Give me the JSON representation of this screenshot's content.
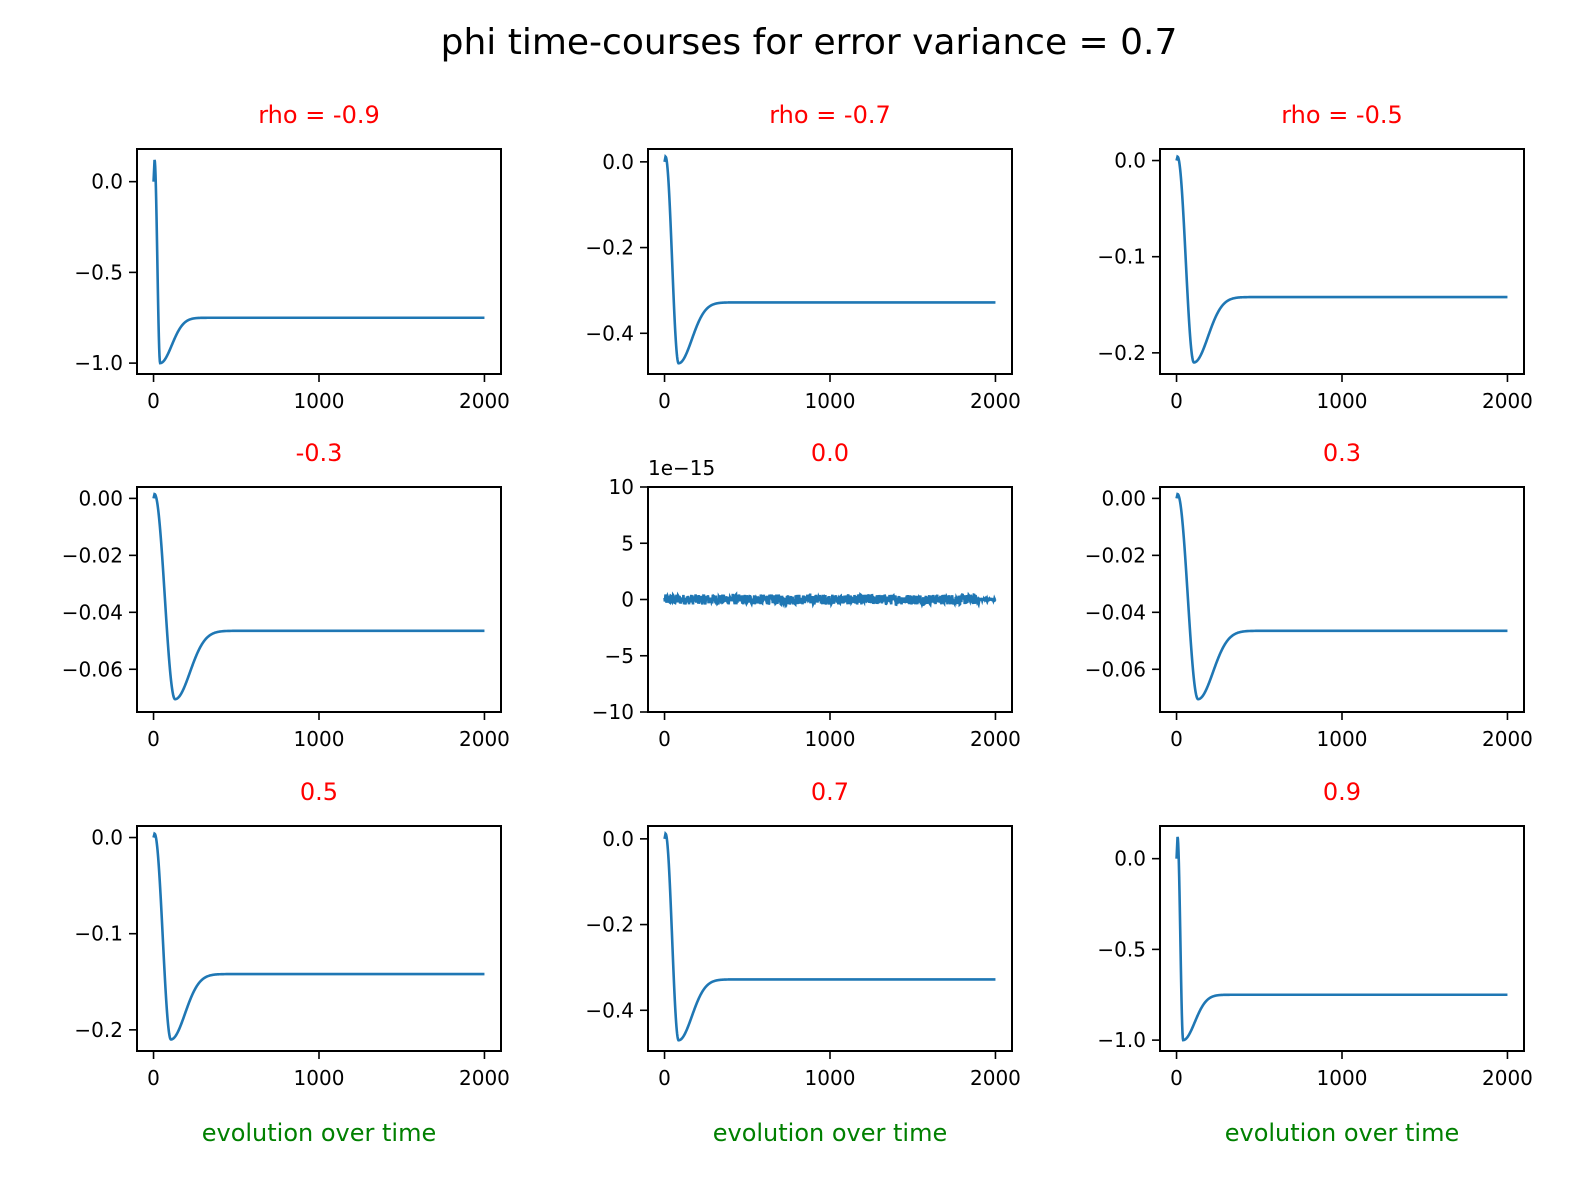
{
  "figure": {
    "title": "phi time-courses for error variance = 0.7"
  },
  "colors": {
    "line": "#1f77b4",
    "subplot_title": "#ff0000",
    "xlabel": "#008000"
  },
  "chart_data": [
    {
      "type": "line",
      "title": "rho = -0.9",
      "xlabel": "",
      "ylabel": "",
      "xlim": [
        -100,
        2100
      ],
      "ylim": [
        -1.06,
        0.18
      ],
      "xticks": [
        0,
        1000,
        2000
      ],
      "xtick_labels": [
        "0",
        "1000",
        "2000"
      ],
      "yticks": [
        0.0,
        -0.5,
        -1.0
      ],
      "ytick_labels": [
        "0.0",
        "−0.5",
        "−1.0"
      ],
      "curve": {
        "x_start": 0,
        "x_end": 2000,
        "start_value": 0.0,
        "initial_spike": 0.12,
        "min_x": 40,
        "min_value": -1.0,
        "plateau": -0.75,
        "recovery_tau": 70
      }
    },
    {
      "type": "line",
      "title": "rho = -0.7",
      "xlabel": "",
      "ylabel": "",
      "xlim": [
        -100,
        2100
      ],
      "ylim": [
        -0.495,
        0.03
      ],
      "xticks": [
        0,
        1000,
        2000
      ],
      "xtick_labels": [
        "0",
        "1000",
        "2000"
      ],
      "yticks": [
        0.0,
        -0.2,
        -0.4
      ],
      "ytick_labels": [
        "0.0",
        "−0.2",
        "−0.4"
      ],
      "curve": {
        "x_start": 0,
        "x_end": 2000,
        "start_value": 0.0,
        "initial_spike": 0.012,
        "min_x": 85,
        "min_value": -0.47,
        "plateau": -0.328,
        "recovery_tau": 80
      }
    },
    {
      "type": "line",
      "title": "rho = -0.5",
      "xlabel": "",
      "ylabel": "",
      "xlim": [
        -100,
        2100
      ],
      "ylim": [
        -0.222,
        0.012
      ],
      "xticks": [
        0,
        1000,
        2000
      ],
      "xtick_labels": [
        "0",
        "1000",
        "2000"
      ],
      "yticks": [
        0.0,
        -0.1,
        -0.2
      ],
      "ytick_labels": [
        "0.0",
        "−0.1",
        "−0.2"
      ],
      "curve": {
        "x_start": 0,
        "x_end": 2000,
        "start_value": 0.0,
        "initial_spike": 0.004,
        "min_x": 105,
        "min_value": -0.21,
        "plateau": -0.142,
        "recovery_tau": 85
      }
    },
    {
      "type": "line",
      "title": "-0.3",
      "xlabel": "",
      "ylabel": "",
      "xlim": [
        -100,
        2100
      ],
      "ylim": [
        -0.075,
        0.004
      ],
      "xticks": [
        0,
        1000,
        2000
      ],
      "xtick_labels": [
        "0",
        "1000",
        "2000"
      ],
      "yticks": [
        0.0,
        -0.02,
        -0.04,
        -0.06
      ],
      "ytick_labels": [
        "0.00",
        "−0.02",
        "−0.04",
        "−0.06"
      ],
      "curve": {
        "x_start": 0,
        "x_end": 2000,
        "start_value": 0.0,
        "initial_spike": 0.0015,
        "min_x": 130,
        "min_value": -0.0705,
        "plateau": -0.0465,
        "recovery_tau": 90
      }
    },
    {
      "type": "line",
      "title": "0.0",
      "xlabel": "",
      "ylabel": "",
      "y_offset_label": "1e−15",
      "xlim": [
        -100,
        2100
      ],
      "ylim": [
        -10,
        10
      ],
      "xticks": [
        0,
        1000,
        2000
      ],
      "xtick_labels": [
        "0",
        "1000",
        "2000"
      ],
      "yticks": [
        10,
        5,
        0,
        -5,
        -10
      ],
      "ytick_labels": [
        "10",
        "5",
        "0",
        "−5",
        "−10"
      ],
      "noise": {
        "x_start": 0,
        "x_end": 2000,
        "center": 0.0,
        "amplitude": 0.45,
        "x_taper_start": 1900
      }
    },
    {
      "type": "line",
      "title": "0.3",
      "xlabel": "",
      "ylabel": "",
      "xlim": [
        -100,
        2100
      ],
      "ylim": [
        -0.075,
        0.004
      ],
      "xticks": [
        0,
        1000,
        2000
      ],
      "xtick_labels": [
        "0",
        "1000",
        "2000"
      ],
      "yticks": [
        0.0,
        -0.02,
        -0.04,
        -0.06
      ],
      "ytick_labels": [
        "0.00",
        "−0.02",
        "−0.04",
        "−0.06"
      ],
      "curve": {
        "x_start": 0,
        "x_end": 2000,
        "start_value": 0.0,
        "initial_spike": 0.0015,
        "min_x": 130,
        "min_value": -0.0705,
        "plateau": -0.0465,
        "recovery_tau": 90
      }
    },
    {
      "type": "line",
      "title": "0.5",
      "xlabel": "evolution over time",
      "ylabel": "",
      "xlim": [
        -100,
        2100
      ],
      "ylim": [
        -0.222,
        0.012
      ],
      "xticks": [
        0,
        1000,
        2000
      ],
      "xtick_labels": [
        "0",
        "1000",
        "2000"
      ],
      "yticks": [
        0.0,
        -0.1,
        -0.2
      ],
      "ytick_labels": [
        "0.0",
        "−0.1",
        "−0.2"
      ],
      "curve": {
        "x_start": 0,
        "x_end": 2000,
        "start_value": 0.0,
        "initial_spike": 0.004,
        "min_x": 105,
        "min_value": -0.21,
        "plateau": -0.142,
        "recovery_tau": 85
      }
    },
    {
      "type": "line",
      "title": "0.7",
      "xlabel": "evolution over time",
      "ylabel": "",
      "xlim": [
        -100,
        2100
      ],
      "ylim": [
        -0.495,
        0.03
      ],
      "xticks": [
        0,
        1000,
        2000
      ],
      "xtick_labels": [
        "0",
        "1000",
        "2000"
      ],
      "yticks": [
        0.0,
        -0.2,
        -0.4
      ],
      "ytick_labels": [
        "0.0",
        "−0.2",
        "−0.4"
      ],
      "curve": {
        "x_start": 0,
        "x_end": 2000,
        "start_value": 0.0,
        "initial_spike": 0.012,
        "min_x": 85,
        "min_value": -0.47,
        "plateau": -0.328,
        "recovery_tau": 80
      }
    },
    {
      "type": "line",
      "title": "0.9",
      "xlabel": "evolution over time",
      "ylabel": "",
      "xlim": [
        -100,
        2100
      ],
      "ylim": [
        -1.06,
        0.18
      ],
      "xticks": [
        0,
        1000,
        2000
      ],
      "xtick_labels": [
        "0",
        "1000",
        "2000"
      ],
      "yticks": [
        0.0,
        -0.5,
        -1.0
      ],
      "ytick_labels": [
        "0.0",
        "−0.5",
        "−1.0"
      ],
      "curve": {
        "x_start": 0,
        "x_end": 2000,
        "start_value": 0.0,
        "initial_spike": 0.12,
        "min_x": 40,
        "min_value": -1.0,
        "plateau": -0.75,
        "recovery_tau": 70
      }
    }
  ]
}
